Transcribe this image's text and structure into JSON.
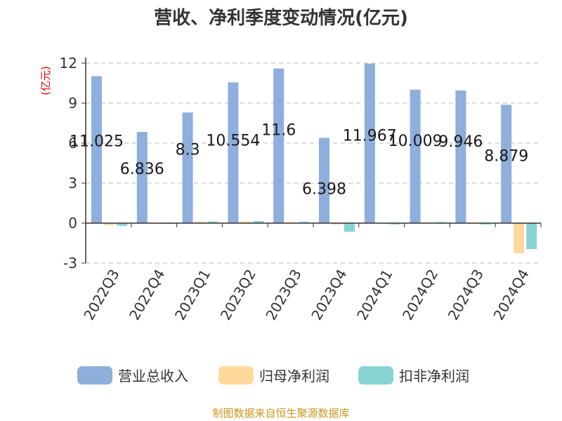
{
  "title": "营收、净利季度变动情况(亿元)",
  "unit_label": "(亿元)",
  "source": "制图数据来自恒生聚源数据库",
  "colors": {
    "revenue": "#8eaedc",
    "net_profit": "#ffd99b",
    "deducted_profit": "#88d4d4",
    "unit": "#e60000",
    "source": "#c8961e",
    "grid": "#bbbbbb",
    "axis": "#333333"
  },
  "chart_data": {
    "type": "bar",
    "title": "营收、净利季度变动情况(亿元)",
    "ylabel": "(亿元)",
    "ylim": [
      -3,
      12
    ],
    "yticks": [
      -3,
      0,
      3,
      6,
      9,
      12
    ],
    "grid": true,
    "legend_position": "bottom",
    "categories": [
      "2022Q3",
      "2022Q4",
      "2023Q1",
      "2023Q2",
      "2023Q3",
      "2023Q4",
      "2024Q1",
      "2024Q2",
      "2024Q3",
      "2024Q4"
    ],
    "series": [
      {
        "name": "营业总收入",
        "values": [
          11.025,
          6.836,
          8.3,
          10.554,
          11.6,
          6.398,
          11.967,
          10.009,
          9.946,
          8.879
        ],
        "labels": [
          "11.025",
          "6.836",
          "8.3",
          "10.554",
          "11.6",
          "6.398",
          "11.967",
          "10.009",
          "9.946",
          "8.879"
        ]
      },
      {
        "name": "归母净利润",
        "values": [
          -0.15,
          -0.05,
          0.1,
          0.12,
          0.08,
          -0.1,
          -0.05,
          0.06,
          -0.05,
          -2.25
        ]
      },
      {
        "name": "扣非净利润",
        "values": [
          -0.2,
          -0.05,
          0.12,
          0.15,
          0.1,
          -0.65,
          -0.1,
          0.08,
          -0.1,
          -1.95
        ]
      }
    ]
  }
}
